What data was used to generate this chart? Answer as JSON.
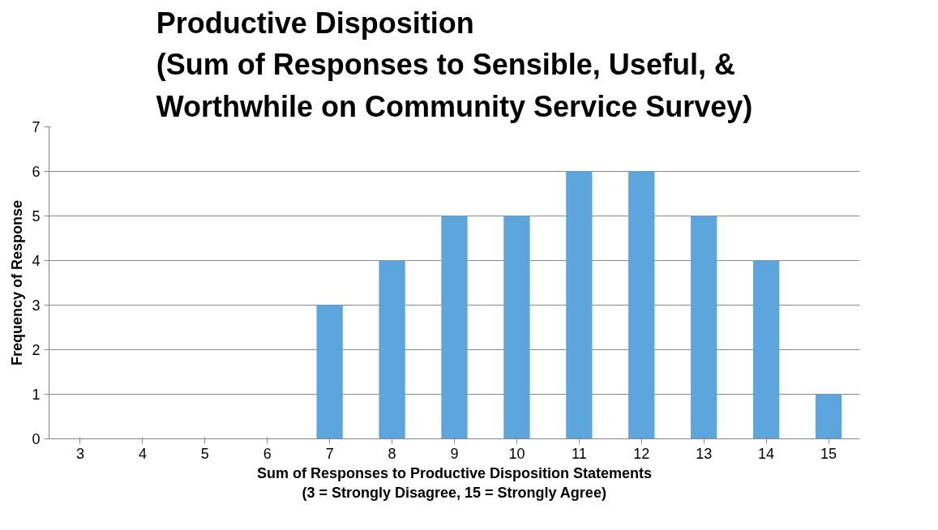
{
  "chart_data": {
    "type": "bar",
    "title": "Productive Disposition\n(Sum of Responses to Sensible, Useful, &\nWorthwhile on Community Service Survey)",
    "xlabel": "Sum of Responses to Productive Disposition Statements\n(3 = Strongly Disagree, 15 = Strongly Agree)",
    "ylabel": "Frequency of Response",
    "categories": [
      "3",
      "4",
      "5",
      "6",
      "7",
      "8",
      "9",
      "10",
      "11",
      "12",
      "13",
      "14",
      "15"
    ],
    "values": [
      0,
      0,
      0,
      0,
      3,
      4,
      5,
      5,
      6,
      6,
      5,
      4,
      1
    ],
    "color": "#5da5dd",
    "ylim": [
      0,
      7
    ],
    "yticks": [
      0,
      1,
      2,
      3,
      4,
      5,
      6,
      7
    ],
    "grid": "y"
  }
}
